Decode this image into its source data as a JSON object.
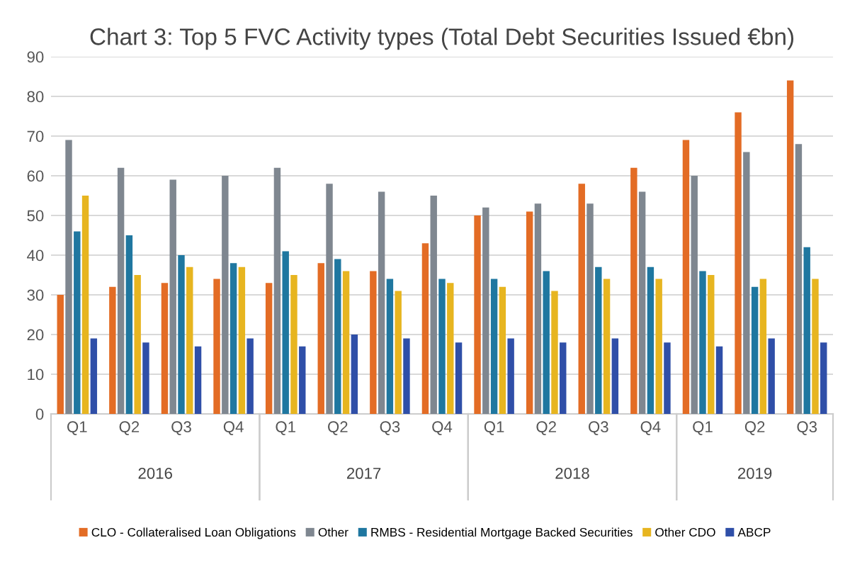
{
  "chart_data": {
    "type": "bar",
    "title": "Chart 3: Top 5 FVC Activity types (Total Debt Securities Issued €bn)",
    "categories": [
      "Q1",
      "Q2",
      "Q3",
      "Q4",
      "Q1",
      "Q2",
      "Q3",
      "Q4",
      "Q1",
      "Q2",
      "Q3",
      "Q4",
      "Q1",
      "Q2",
      "Q3"
    ],
    "annotations": [
      "2016",
      "2017",
      "2018",
      "2019"
    ],
    "series": [
      {
        "name": "CLO - Collateralised Loan Obligations",
        "color": "#e36c25",
        "values": [
          30,
          32,
          33,
          34,
          33,
          38,
          36,
          43,
          50,
          51,
          58,
          62,
          69,
          76,
          84
        ]
      },
      {
        "name": "Other",
        "color": "#7f8790",
        "values": [
          69,
          62,
          59,
          60,
          62,
          58,
          56,
          55,
          52,
          53,
          53,
          56,
          60,
          66,
          68
        ]
      },
      {
        "name": "RMBS - Residential Mortgage Backed Securities",
        "color": "#1f77a0",
        "values": [
          46,
          45,
          40,
          38,
          41,
          39,
          34,
          34,
          34,
          36,
          37,
          37,
          36,
          32,
          42
        ]
      },
      {
        "name": "Other CDO",
        "color": "#e7b520",
        "values": [
          55,
          35,
          37,
          37,
          35,
          36,
          31,
          33,
          32,
          31,
          34,
          34,
          35,
          34,
          34
        ]
      },
      {
        "name": "ABCP",
        "color": "#2f4fa8",
        "values": [
          19,
          18,
          17,
          19,
          17,
          20,
          19,
          18,
          19,
          18,
          19,
          18,
          17,
          19,
          18
        ]
      }
    ],
    "ylim": [
      0,
      90
    ],
    "yticks": [
      0,
      10,
      20,
      30,
      40,
      50,
      60,
      70,
      80,
      90
    ],
    "grid": "y",
    "legend": "bottom"
  }
}
